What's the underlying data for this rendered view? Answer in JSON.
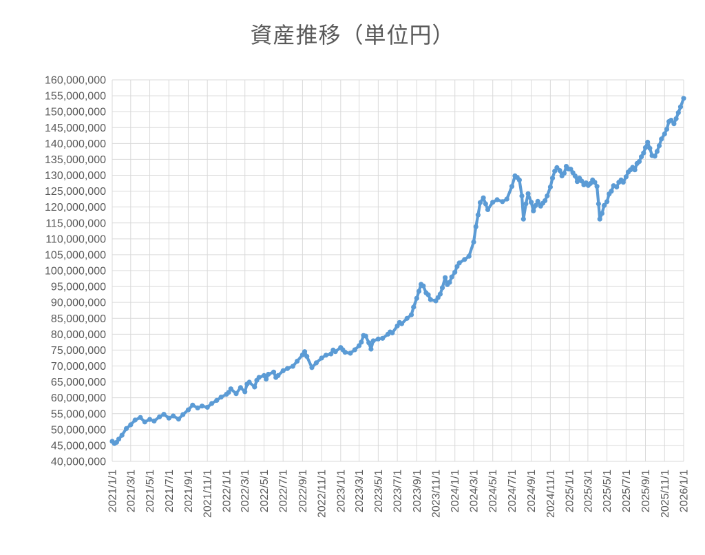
{
  "page": {
    "background": "#ffffff"
  },
  "chart": {
    "colors": {
      "line": "#5b9bd5",
      "grid": "#d9d9d9",
      "text": "#595959",
      "background": "#ffffff"
    }
  },
  "chart_data": {
    "type": "line",
    "title": "資産推移（単位円）",
    "xlabel": "",
    "ylabel": "",
    "legend_position": "none",
    "grid": true,
    "y_axis": {
      "min": 40000000,
      "max": 160000000,
      "step": 5000000
    },
    "x_ticks": [
      "2021/1/1",
      "2021/3/1",
      "2021/5/1",
      "2021/7/1",
      "2021/9/1",
      "2021/11/1",
      "2022/1/1",
      "2022/3/1",
      "2022/5/1",
      "2022/7/1",
      "2022/9/1",
      "2022/11/1",
      "2023/1/1",
      "2023/3/1",
      "2023/5/1",
      "2023/7/1",
      "2023/9/1",
      "2023/11/1",
      "2024/1/1",
      "2024/3/1",
      "2024/5/1",
      "2024/7/1",
      "2024/9/1",
      "2024/11/1",
      "2025/1/1",
      "2025/3/1",
      "2025/5/1",
      "2025/7/1",
      "2025/9/1",
      "2025/11/1",
      "2026/1/1"
    ],
    "x_range": [
      "2021/1/1",
      "2026/1/1"
    ],
    "series": [
      {
        "name": "資産",
        "points": [
          [
            "2021/1/1",
            46300000
          ],
          [
            "2021/1/8",
            45600000
          ],
          [
            "2021/1/15",
            46000000
          ],
          [
            "2021/1/22",
            47000000
          ],
          [
            "2021/2/1",
            48200000
          ],
          [
            "2021/2/15",
            50300000
          ],
          [
            "2021/3/1",
            51500000
          ],
          [
            "2021/3/15",
            53000000
          ],
          [
            "2021/4/1",
            53800000
          ],
          [
            "2021/4/15",
            52400000
          ],
          [
            "2021/5/1",
            53200000
          ],
          [
            "2021/5/15",
            52700000
          ],
          [
            "2021/6/1",
            54000000
          ],
          [
            "2021/6/15",
            54800000
          ],
          [
            "2021/7/1",
            53600000
          ],
          [
            "2021/7/15",
            54300000
          ],
          [
            "2021/8/1",
            53300000
          ],
          [
            "2021/8/15",
            54700000
          ],
          [
            "2021/9/1",
            56200000
          ],
          [
            "2021/9/15",
            57700000
          ],
          [
            "2021/10/1",
            56800000
          ],
          [
            "2021/10/15",
            57400000
          ],
          [
            "2021/11/1",
            57000000
          ],
          [
            "2021/11/15",
            58200000
          ],
          [
            "2021/12/1",
            59200000
          ],
          [
            "2021/12/15",
            60200000
          ],
          [
            "2022/1/1",
            61100000
          ],
          [
            "2022/1/8",
            61700000
          ],
          [
            "2022/1/15",
            62800000
          ],
          [
            "2022/2/1",
            61300000
          ],
          [
            "2022/2/15",
            63200000
          ],
          [
            "2022/3/1",
            61900000
          ],
          [
            "2022/3/8",
            64300000
          ],
          [
            "2022/3/15",
            64900000
          ],
          [
            "2022/4/1",
            63400000
          ],
          [
            "2022/4/8",
            65500000
          ],
          [
            "2022/4/15",
            66400000
          ],
          [
            "2022/5/1",
            67000000
          ],
          [
            "2022/5/8",
            65900000
          ],
          [
            "2022/5/15",
            67400000
          ],
          [
            "2022/6/1",
            68100000
          ],
          [
            "2022/6/8",
            66400000
          ],
          [
            "2022/6/15",
            67000000
          ],
          [
            "2022/7/1",
            68500000
          ],
          [
            "2022/7/15",
            69200000
          ],
          [
            "2022/8/1",
            69900000
          ],
          [
            "2022/8/15",
            71500000
          ],
          [
            "2022/9/1",
            73500000
          ],
          [
            "2022/9/8",
            74500000
          ],
          [
            "2022/9/15",
            73000000
          ],
          [
            "2022/10/1",
            69500000
          ],
          [
            "2022/10/15",
            71000000
          ],
          [
            "2022/11/1",
            72500000
          ],
          [
            "2022/11/15",
            73400000
          ],
          [
            "2022/12/1",
            73800000
          ],
          [
            "2022/12/8",
            75000000
          ],
          [
            "2022/12/15",
            74500000
          ],
          [
            "2023/1/1",
            75800000
          ],
          [
            "2023/1/8",
            75100000
          ],
          [
            "2023/1/15",
            74300000
          ],
          [
            "2023/2/1",
            74000000
          ],
          [
            "2023/2/15",
            75100000
          ],
          [
            "2023/3/1",
            76400000
          ],
          [
            "2023/3/8",
            77500000
          ],
          [
            "2023/3/15",
            79600000
          ],
          [
            "2023/3/22",
            79400000
          ],
          [
            "2023/4/1",
            77300000
          ],
          [
            "2023/4/8",
            75300000
          ],
          [
            "2023/4/15",
            77900000
          ],
          [
            "2023/5/1",
            78500000
          ],
          [
            "2023/5/15",
            78700000
          ],
          [
            "2023/6/1",
            80000000
          ],
          [
            "2023/6/8",
            80700000
          ],
          [
            "2023/6/15",
            80400000
          ],
          [
            "2023/7/1",
            82600000
          ],
          [
            "2023/7/8",
            83700000
          ],
          [
            "2023/7/15",
            83300000
          ],
          [
            "2023/8/1",
            85000000
          ],
          [
            "2023/8/15",
            86100000
          ],
          [
            "2023/8/22",
            88500000
          ],
          [
            "2023/9/1",
            91300000
          ],
          [
            "2023/9/8",
            93500000
          ],
          [
            "2023/9/15",
            95700000
          ],
          [
            "2023/9/22",
            95200000
          ],
          [
            "2023/10/1",
            93000000
          ],
          [
            "2023/10/8",
            92400000
          ],
          [
            "2023/10/15",
            90900000
          ],
          [
            "2023/11/1",
            90500000
          ],
          [
            "2023/11/8",
            91500000
          ],
          [
            "2023/11/15",
            92600000
          ],
          [
            "2023/11/22",
            94600000
          ],
          [
            "2023/12/1",
            97800000
          ],
          [
            "2023/12/8",
            95600000
          ],
          [
            "2023/12/15",
            96300000
          ],
          [
            "2023/12/22",
            98000000
          ],
          [
            "2024/1/1",
            99500000
          ],
          [
            "2024/1/8",
            101300000
          ],
          [
            "2024/1/15",
            102400000
          ],
          [
            "2024/2/1",
            103500000
          ],
          [
            "2024/2/15",
            104500000
          ],
          [
            "2024/3/1",
            109000000
          ],
          [
            "2024/3/8",
            113800000
          ],
          [
            "2024/3/15",
            117500000
          ],
          [
            "2024/3/22",
            121400000
          ],
          [
            "2024/4/1",
            122900000
          ],
          [
            "2024/4/8",
            121000000
          ],
          [
            "2024/4/15",
            119200000
          ],
          [
            "2024/5/1",
            121500000
          ],
          [
            "2024/5/15",
            122300000
          ],
          [
            "2024/6/1",
            121700000
          ],
          [
            "2024/6/15",
            122500000
          ],
          [
            "2024/7/1",
            126500000
          ],
          [
            "2024/7/11",
            129800000
          ],
          [
            "2024/7/18",
            129300000
          ],
          [
            "2024/7/25",
            128500000
          ],
          [
            "2024/8/2",
            123500000
          ],
          [
            "2024/8/7",
            116200000
          ],
          [
            "2024/8/15",
            121000000
          ],
          [
            "2024/8/22",
            124200000
          ],
          [
            "2024/9/1",
            121500000
          ],
          [
            "2024/9/8",
            118800000
          ],
          [
            "2024/9/15",
            120500000
          ],
          [
            "2024/9/22",
            121800000
          ],
          [
            "2024/10/1",
            120300000
          ],
          [
            "2024/10/8",
            121200000
          ],
          [
            "2024/10/15",
            122000000
          ],
          [
            "2024/10/22",
            123500000
          ],
          [
            "2024/11/1",
            126300000
          ],
          [
            "2024/11/8",
            129100000
          ],
          [
            "2024/11/15",
            131300000
          ],
          [
            "2024/11/22",
            132400000
          ],
          [
            "2024/12/1",
            131500000
          ],
          [
            "2024/12/8",
            129800000
          ],
          [
            "2024/12/15",
            130600000
          ],
          [
            "2024/12/22",
            132800000
          ],
          [
            "2024/12/29",
            132000000
          ],
          [
            "2025/1/5",
            131900000
          ],
          [
            "2025/1/12",
            130800000
          ],
          [
            "2025/1/19",
            129800000
          ],
          [
            "2025/1/26",
            128000000
          ],
          [
            "2025/2/2",
            129100000
          ],
          [
            "2025/2/9",
            128200000
          ],
          [
            "2025/2/16",
            127000000
          ],
          [
            "2025/2/23",
            127600000
          ],
          [
            "2025/3/2",
            126800000
          ],
          [
            "2025/3/9",
            127400000
          ],
          [
            "2025/3/16",
            128500000
          ],
          [
            "2025/3/23",
            127800000
          ],
          [
            "2025/3/30",
            126500000
          ],
          [
            "2025/4/4",
            121000000
          ],
          [
            "2025/4/8",
            116200000
          ],
          [
            "2025/4/15",
            118000000
          ],
          [
            "2025/4/22",
            120500000
          ],
          [
            "2025/5/1",
            121700000
          ],
          [
            "2025/5/8",
            124100000
          ],
          [
            "2025/5/15",
            125000000
          ],
          [
            "2025/5/22",
            126700000
          ],
          [
            "2025/6/1",
            126300000
          ],
          [
            "2025/6/8",
            127800000
          ],
          [
            "2025/6/15",
            128500000
          ],
          [
            "2025/6/22",
            127800000
          ],
          [
            "2025/7/1",
            129500000
          ],
          [
            "2025/7/8",
            131000000
          ],
          [
            "2025/7/15",
            131700000
          ],
          [
            "2025/7/22",
            132500000
          ],
          [
            "2025/7/29",
            131700000
          ],
          [
            "2025/8/5",
            133700000
          ],
          [
            "2025/8/12",
            134300000
          ],
          [
            "2025/8/19",
            135800000
          ],
          [
            "2025/8/26",
            137000000
          ],
          [
            "2025/9/1",
            138700000
          ],
          [
            "2025/9/8",
            140400000
          ],
          [
            "2025/9/15",
            138500000
          ],
          [
            "2025/9/22",
            136200000
          ],
          [
            "2025/10/1",
            136000000
          ],
          [
            "2025/10/8",
            137500000
          ],
          [
            "2025/10/15",
            139300000
          ],
          [
            "2025/10/22",
            141400000
          ],
          [
            "2025/11/1",
            143000000
          ],
          [
            "2025/11/8",
            144500000
          ],
          [
            "2025/11/15",
            146900000
          ],
          [
            "2025/11/22",
            147300000
          ],
          [
            "2025/12/1",
            146200000
          ],
          [
            "2025/12/8",
            147800000
          ],
          [
            "2025/12/15",
            149700000
          ],
          [
            "2025/12/22",
            151500000
          ],
          [
            "2026/1/1",
            154200000
          ]
        ]
      }
    ]
  }
}
